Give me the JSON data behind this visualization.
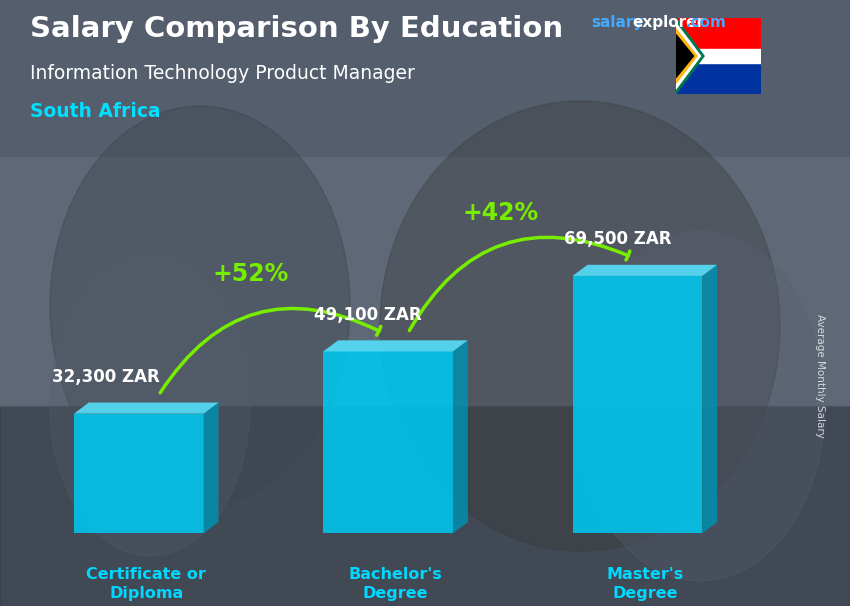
{
  "title": "Salary Comparison By Education",
  "subtitle": "Information Technology Product Manager",
  "country": "South Africa",
  "categories": [
    "Certificate or\nDiploma",
    "Bachelor's\nDegree",
    "Master's\nDegree"
  ],
  "values": [
    32300,
    49100,
    69500
  ],
  "value_labels": [
    "32,300 ZAR",
    "49,100 ZAR",
    "69,500 ZAR"
  ],
  "pct_changes": [
    "+52%",
    "+42%"
  ],
  "bar_front_color": "#00c8f0",
  "bar_top_color": "#55ddf8",
  "bar_side_color": "#0090b0",
  "bg_color": "#5a6472",
  "title_color": "#ffffff",
  "subtitle_color": "#ffffff",
  "country_color": "#00e0ff",
  "label_color": "#ffffff",
  "xlabel_color": "#00d8ff",
  "arrow_color": "#77ee00",
  "pct_color": "#77ee00",
  "site_salary_color": "#44aaff",
  "site_explorer_color": "#ffffff",
  "ylabel_text": "Average Monthly Salary",
  "figsize": [
    8.5,
    6.06
  ],
  "dpi": 100
}
